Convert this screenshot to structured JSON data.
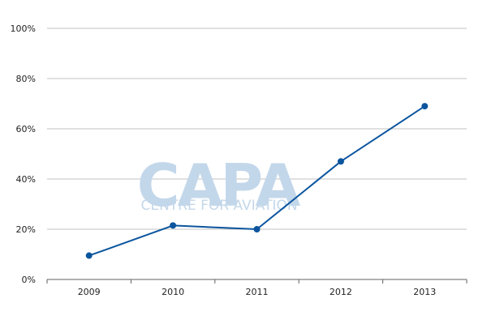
{
  "watermark": {
    "brand": "CAPA",
    "tagline": "CENTRE FOR AVIATION"
  },
  "colors": {
    "line": "#0b559e",
    "grid": "#c0c0c0",
    "axis": "#606060",
    "watermark": "#c3d7ea"
  },
  "chart_data": {
    "type": "line",
    "title": "",
    "xlabel": "",
    "ylabel": "",
    "categories": [
      "2009",
      "2010",
      "2011",
      "2012",
      "2013"
    ],
    "y_tick_labels": [
      "0%",
      "20%",
      "40%",
      "60%",
      "80%",
      "100%"
    ],
    "ylim": [
      0,
      100
    ],
    "grid": true,
    "series": [
      {
        "values": [
          9.5,
          21.5,
          20,
          47,
          69
        ]
      }
    ]
  }
}
